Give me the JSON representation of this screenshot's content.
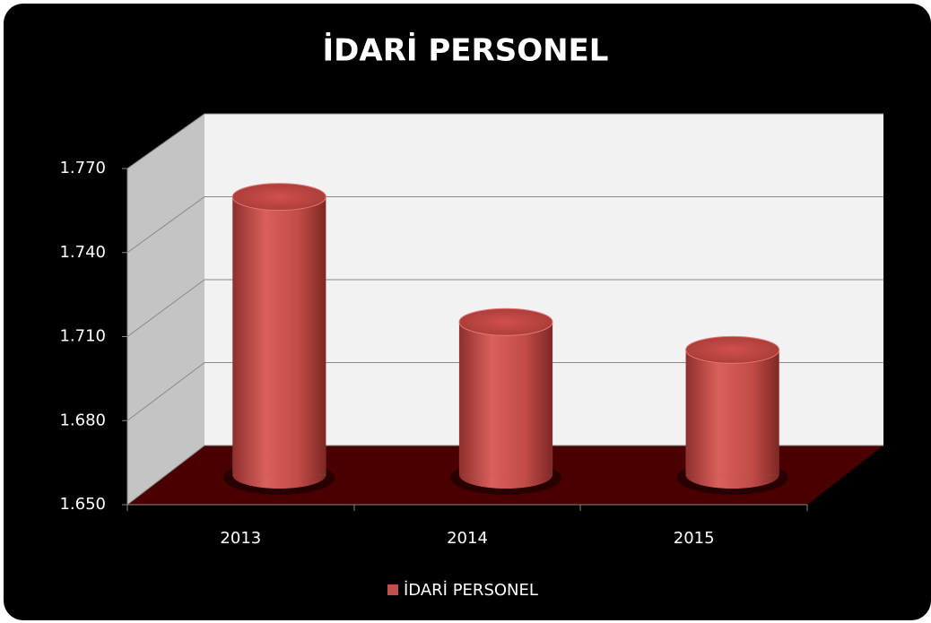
{
  "chart_data": {
    "type": "bar3d",
    "title": "İDARİ  PERSONEL",
    "categories": [
      "2013",
      "2014",
      "2015"
    ],
    "series": [
      {
        "name": "İDARİ PERSONEL",
        "color": "#c0504d",
        "values": [
          1750,
          1705,
          1695
        ]
      }
    ],
    "ylim": [
      1650,
      1770
    ],
    "yticks": [
      {
        "value": 1650,
        "label": "1.650"
      },
      {
        "value": 1680,
        "label": "1.680"
      },
      {
        "value": 1710,
        "label": "1.710"
      },
      {
        "value": 1740,
        "label": "1.740"
      },
      {
        "value": 1770,
        "label": "1.770"
      }
    ],
    "grid": true,
    "legend": "bottom"
  }
}
